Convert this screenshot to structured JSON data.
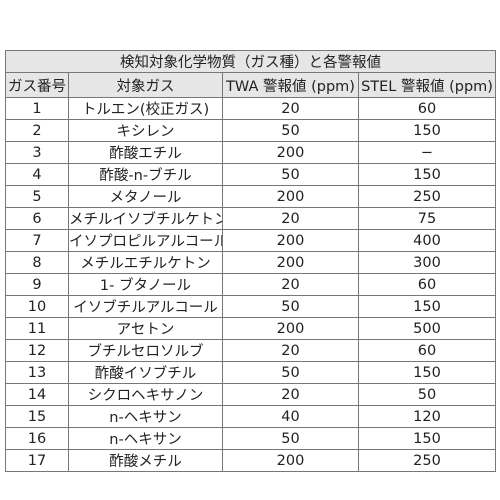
{
  "table": {
    "title": "検知対象化学物質（ガス種）と各警報値",
    "columns": [
      "ガス番号",
      "対象ガス",
      "TWA 警報値 (ppm)",
      "STEL 警報値 (ppm)"
    ],
    "rows": [
      [
        1,
        "トルエン(校正ガス)",
        20,
        60
      ],
      [
        2,
        "キシレン",
        50,
        150
      ],
      [
        3,
        "酢酸エチル",
        200,
        "−"
      ],
      [
        4,
        "酢酸-n-ブチル",
        50,
        150
      ],
      [
        5,
        "メタノール",
        200,
        250
      ],
      [
        6,
        "メチルイソブチルケトン",
        20,
        75
      ],
      [
        7,
        "イソプロピルアルコール",
        200,
        400
      ],
      [
        8,
        "メチルエチルケトン",
        200,
        300
      ],
      [
        9,
        "1- ブタノール",
        20,
        60
      ],
      [
        10,
        "イソブチルアルコール",
        50,
        150
      ],
      [
        11,
        "アセトン",
        200,
        500
      ],
      [
        12,
        "ブチルセロソルブ",
        20,
        60
      ],
      [
        13,
        "酢酸イソブチル",
        50,
        150
      ],
      [
        14,
        "シクロヘキサノン",
        20,
        50
      ],
      [
        15,
        "n-ヘキサン",
        40,
        120
      ],
      [
        16,
        "n-ヘキサン",
        50,
        150
      ],
      [
        17,
        "酢酸メチル",
        200,
        250
      ]
    ]
  }
}
